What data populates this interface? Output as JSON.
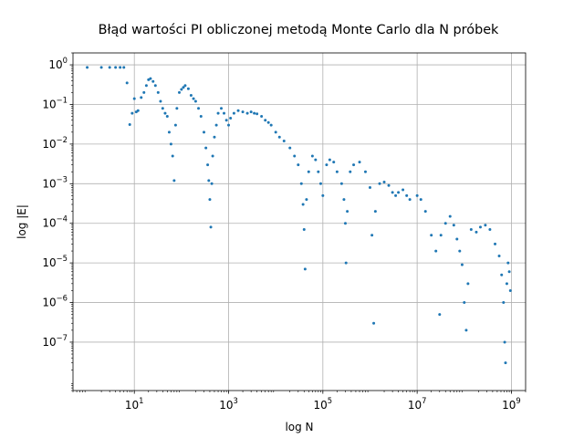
{
  "chart_data": {
    "type": "scatter",
    "title": "Błąd wartości PI obliczonej metodą Monte Carlo dla N próbek",
    "xlabel": "log N",
    "ylabel": "log |E|",
    "x_scale": "log",
    "y_scale": "log",
    "xlim": [
      0.5,
      2000000000
    ],
    "ylim": [
      6e-09,
      2
    ],
    "grid": true,
    "marker_color": "#1f77b4",
    "x_ticks": [
      {
        "value": 10,
        "base": "10",
        "exp": "1"
      },
      {
        "value": 1000,
        "base": "10",
        "exp": "3"
      },
      {
        "value": 100000,
        "base": "10",
        "exp": "5"
      },
      {
        "value": 10000000,
        "base": "10",
        "exp": "7"
      },
      {
        "value": 1000000000,
        "base": "10",
        "exp": "9"
      }
    ],
    "y_ticks": [
      {
        "value": 1,
        "base": "10",
        "exp": "0"
      },
      {
        "value": 0.1,
        "base": "10",
        "exp": "−1"
      },
      {
        "value": 0.01,
        "base": "10",
        "exp": "−2"
      },
      {
        "value": 0.001,
        "base": "10",
        "exp": "−3"
      },
      {
        "value": 0.0001,
        "base": "10",
        "exp": "−4"
      },
      {
        "value": 1e-05,
        "base": "10",
        "exp": "−5"
      },
      {
        "value": 1e-06,
        "base": "10",
        "exp": "−6"
      },
      {
        "value": 1e-07,
        "base": "10",
        "exp": "−7"
      }
    ],
    "points": [
      [
        1,
        0.86
      ],
      [
        2,
        0.86
      ],
      [
        3,
        0.86
      ],
      [
        4,
        0.86
      ],
      [
        5,
        0.86
      ],
      [
        6,
        0.86
      ],
      [
        7,
        0.35
      ],
      [
        8,
        0.031
      ],
      [
        9,
        0.06
      ],
      [
        10,
        0.14
      ],
      [
        11,
        0.065
      ],
      [
        12,
        0.07
      ],
      [
        14,
        0.15
      ],
      [
        16,
        0.2
      ],
      [
        18,
        0.3
      ],
      [
        20,
        0.42
      ],
      [
        22,
        0.45
      ],
      [
        25,
        0.38
      ],
      [
        28,
        0.3
      ],
      [
        32,
        0.2
      ],
      [
        36,
        0.12
      ],
      [
        40,
        0.08
      ],
      [
        45,
        0.06
      ],
      [
        50,
        0.05
      ],
      [
        55,
        0.02
      ],
      [
        60,
        0.01
      ],
      [
        65,
        0.005
      ],
      [
        70,
        0.0012
      ],
      [
        75,
        0.03
      ],
      [
        80,
        0.08
      ],
      [
        90,
        0.2
      ],
      [
        100,
        0.24
      ],
      [
        110,
        0.27
      ],
      [
        120,
        0.3
      ],
      [
        140,
        0.25
      ],
      [
        160,
        0.17
      ],
      [
        180,
        0.14
      ],
      [
        200,
        0.12
      ],
      [
        230,
        0.08
      ],
      [
        260,
        0.05
      ],
      [
        300,
        0.02
      ],
      [
        330,
        0.008
      ],
      [
        360,
        0.003
      ],
      [
        380,
        0.0012
      ],
      [
        400,
        0.0004
      ],
      [
        420,
        8e-05
      ],
      [
        440,
        0.001
      ],
      [
        460,
        0.005
      ],
      [
        500,
        0.015
      ],
      [
        550,
        0.03
      ],
      [
        600,
        0.06
      ],
      [
        700,
        0.08
      ],
      [
        800,
        0.06
      ],
      [
        900,
        0.04
      ],
      [
        1000,
        0.03
      ],
      [
        1100,
        0.045
      ],
      [
        1300,
        0.06
      ],
      [
        1600,
        0.07
      ],
      [
        2000,
        0.065
      ],
      [
        2500,
        0.06
      ],
      [
        3000,
        0.065
      ],
      [
        3500,
        0.06
      ],
      [
        4000,
        0.058
      ],
      [
        5000,
        0.05
      ],
      [
        6000,
        0.04
      ],
      [
        7000,
        0.035
      ],
      [
        8000,
        0.03
      ],
      [
        10000,
        0.02
      ],
      [
        12000,
        0.015
      ],
      [
        15000,
        0.012
      ],
      [
        20000,
        0.008
      ],
      [
        25000,
        0.005
      ],
      [
        30000,
        0.003
      ],
      [
        35000,
        0.001
      ],
      [
        38000,
        0.0003
      ],
      [
        40000,
        7e-05
      ],
      [
        42000,
        7e-06
      ],
      [
        45000,
        0.0004
      ],
      [
        50000,
        0.002
      ],
      [
        60000,
        0.005
      ],
      [
        70000,
        0.004
      ],
      [
        80000,
        0.002
      ],
      [
        90000,
        0.001
      ],
      [
        100000,
        0.0005
      ],
      [
        120000,
        0.003
      ],
      [
        140000,
        0.004
      ],
      [
        170000,
        0.0035
      ],
      [
        200000,
        0.002
      ],
      [
        250000,
        0.001
      ],
      [
        280000,
        0.0004
      ],
      [
        300000,
        0.0001
      ],
      [
        310000,
        1e-05
      ],
      [
        330000,
        0.0002
      ],
      [
        380000,
        0.002
      ],
      [
        450000,
        0.003
      ],
      [
        600000,
        0.0035
      ],
      [
        800000,
        0.002
      ],
      [
        1000000,
        0.0008
      ],
      [
        1100000,
        5e-05
      ],
      [
        1200000,
        3e-07
      ],
      [
        1300000,
        0.0002
      ],
      [
        1600000,
        0.001
      ],
      [
        2000000,
        0.0011
      ],
      [
        2500000,
        0.0009
      ],
      [
        3000000,
        0.0006
      ],
      [
        3500000,
        0.0005
      ],
      [
        4000000,
        0.0006
      ],
      [
        5000000,
        0.0007
      ],
      [
        6000000,
        0.0005
      ],
      [
        7000000,
        0.0004
      ],
      [
        10000000,
        0.0005
      ],
      [
        12000000,
        0.0004
      ],
      [
        15000000,
        0.0002
      ],
      [
        20000000,
        5e-05
      ],
      [
        25000000,
        2e-05
      ],
      [
        30000000,
        5e-07
      ],
      [
        32000000,
        5e-05
      ],
      [
        40000000,
        0.0001
      ],
      [
        50000000,
        0.00015
      ],
      [
        60000000,
        9e-05
      ],
      [
        70000000,
        4e-05
      ],
      [
        80000000,
        2e-05
      ],
      [
        90000000,
        9e-06
      ],
      [
        100000000,
        1e-06
      ],
      [
        110000000,
        2e-07
      ],
      [
        120000000,
        3e-06
      ],
      [
        140000000,
        7e-05
      ],
      [
        180000000,
        6e-05
      ],
      [
        220000000,
        8e-05
      ],
      [
        280000000,
        9e-05
      ],
      [
        350000000,
        7e-05
      ],
      [
        450000000,
        3e-05
      ],
      [
        550000000,
        1.5e-05
      ],
      [
        620000000,
        5e-06
      ],
      [
        680000000,
        1e-06
      ],
      [
        720000000,
        1e-07
      ],
      [
        750000000,
        3e-08
      ],
      [
        800000000,
        3e-06
      ],
      [
        850000000,
        1e-05
      ],
      [
        900000000,
        6e-06
      ],
      [
        950000000,
        2e-06
      ]
    ]
  }
}
